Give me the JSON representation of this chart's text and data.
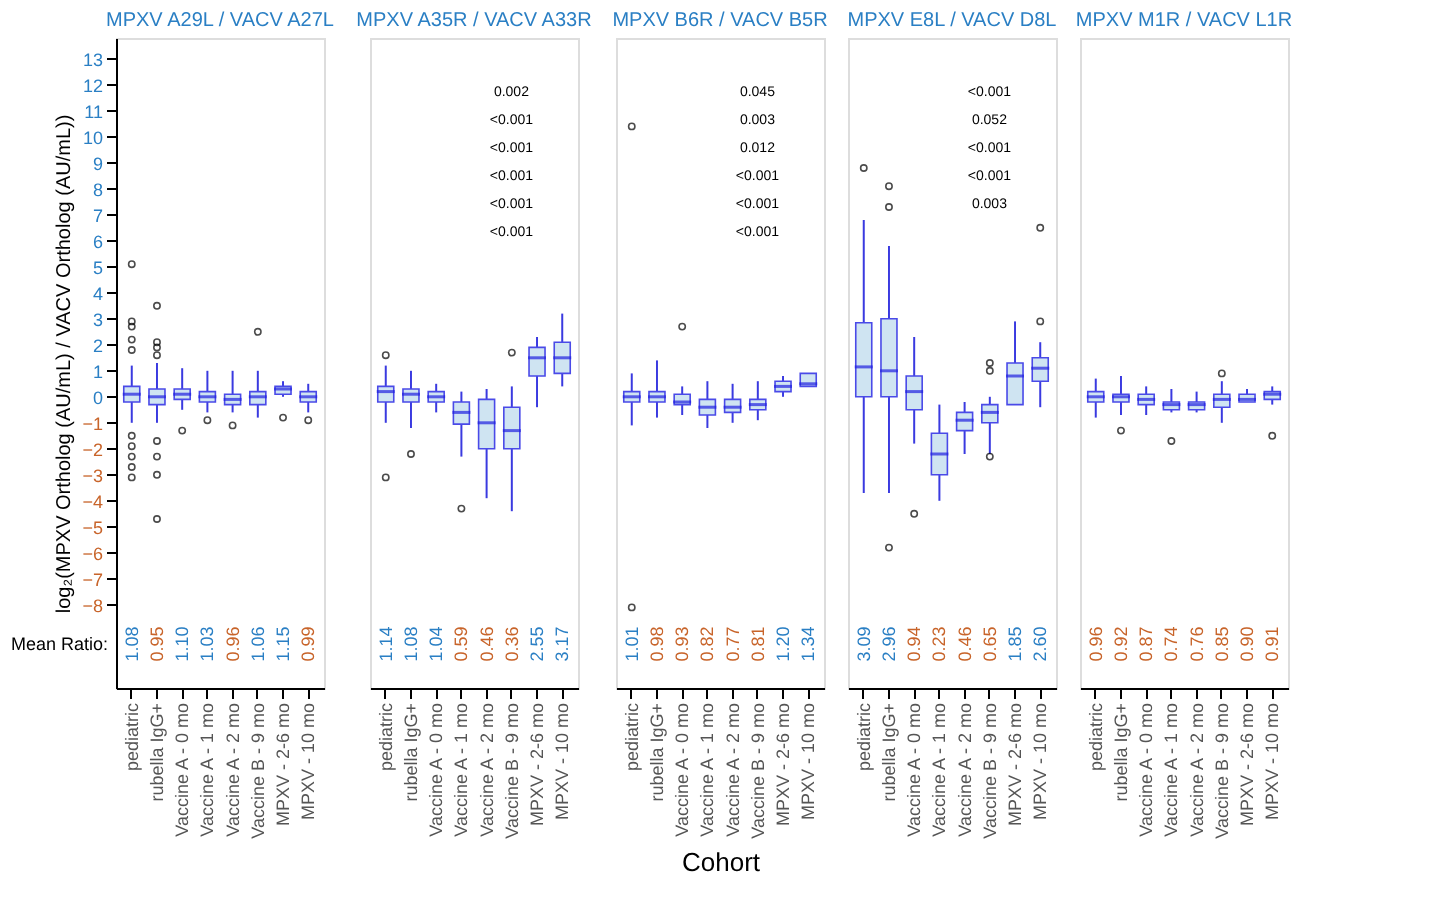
{
  "chart_data": [
    {
      "type": "box",
      "title": "MPXV A29L / VACV A27L",
      "ylabel": "log₂(MPXV Ortholog (AU/mL) / VACV Ortholog (AU/mL))",
      "categories": [
        "pediatric",
        "rubella IgG+",
        "Vaccine A - 0 mo",
        "Vaccine A - 1 mo",
        "Vaccine A - 2 mo",
        "Vaccine B - 9 mo",
        "MPXV - 2-6 mo",
        "MPXV - 10 mo"
      ],
      "boxes": [
        {
          "low": -1,
          "q1": -0.2,
          "median": 0.1,
          "q3": 0.4,
          "high": 1.2,
          "outliers": [
            5.1,
            2.9,
            2.7,
            2.2,
            1.8,
            -1.5,
            -1.9,
            -2.3,
            -2.7,
            -3.1
          ]
        },
        {
          "low": -1,
          "q1": -0.3,
          "median": 0,
          "q3": 0.3,
          "high": 1.3,
          "outliers": [
            3.5,
            2.1,
            1.9,
            1.6,
            -1.7,
            -2.3,
            -3,
            -4.7
          ]
        },
        {
          "low": -0.5,
          "q1": -0.1,
          "median": 0.1,
          "q3": 0.3,
          "high": 1.1,
          "outliers": [
            -1.3
          ]
        },
        {
          "low": -0.6,
          "q1": -0.2,
          "median": 0,
          "q3": 0.2,
          "high": 1,
          "outliers": [
            -0.9
          ]
        },
        {
          "low": -0.6,
          "q1": -0.3,
          "median": -0.1,
          "q3": 0.1,
          "high": 1,
          "outliers": [
            -1.1
          ]
        },
        {
          "low": -0.8,
          "q1": -0.3,
          "median": 0,
          "q3": 0.2,
          "high": 1,
          "outliers": [
            2.5
          ]
        },
        {
          "low": 0,
          "q1": 0.1,
          "median": 0.3,
          "q3": 0.4,
          "high": 0.6,
          "outliers": [
            -0.8
          ]
        },
        {
          "low": -0.6,
          "q1": -0.2,
          "median": 0,
          "q3": 0.2,
          "high": 0.5,
          "outliers": [
            -0.9
          ]
        }
      ],
      "ylim": [
        -11.2,
        13.8
      ],
      "yticks": [
        -8,
        -7,
        -6,
        -5,
        -4,
        -3,
        -2,
        -1,
        0,
        1,
        2,
        3,
        4,
        5,
        6,
        7,
        8,
        9,
        10,
        11,
        12,
        13
      ],
      "annotations": [
        "1.08",
        "0.95",
        "1.10",
        "1.03",
        "0.96",
        "1.06",
        "1.15",
        "0.99",
        "Mean Ratio:"
      ]
    },
    {
      "type": "box",
      "title": "MPXV A35R / VACV A33R",
      "categories": [
        "pediatric",
        "rubella IgG+",
        "Vaccine A - 0 mo",
        "Vaccine A - 1 mo",
        "Vaccine A - 2 mo",
        "Vaccine B - 9 mo",
        "MPXV - 2-6 mo",
        "MPXV - 10 mo"
      ],
      "boxes": [
        {
          "low": -1,
          "q1": -0.2,
          "median": 0.2,
          "q3": 0.4,
          "high": 1.2,
          "outliers": [
            1.6,
            -3.1
          ]
        },
        {
          "low": -1.2,
          "q1": -0.2,
          "median": 0.1,
          "q3": 0.3,
          "high": 1.0,
          "outliers": [
            -2.2
          ]
        },
        {
          "low": -0.6,
          "q1": -0.2,
          "median": 0,
          "q3": 0.2,
          "high": 0.5
        },
        {
          "low": -2.3,
          "q1": -1.05,
          "median": -0.6,
          "q3": -0.2,
          "high": 0.2,
          "outliers": [
            -4.3
          ]
        },
        {
          "low": -3.9,
          "q1": -2.0,
          "median": -1.0,
          "q3": -0.1,
          "high": 0.3
        },
        {
          "low": -4.4,
          "q1": -2.0,
          "median": -1.3,
          "q3": -0.4,
          "high": 0.4,
          "outliers": [
            1.7
          ]
        },
        {
          "low": -0.4,
          "q1": 0.8,
          "median": 1.5,
          "q3": 1.9,
          "high": 2.3
        },
        {
          "low": 0.4,
          "q1": 0.9,
          "median": 1.5,
          "q3": 2.1,
          "high": 3.2
        }
      ],
      "ylim": [
        -11.2,
        13.8
      ],
      "tick_labels": "x",
      "annotations": [
        "1.14",
        "1.08",
        "1.04",
        "0.59",
        "0.46",
        "0.36",
        "2.55",
        "3.17",
        "0.002",
        "<0.001",
        "<0.001",
        "<0.001",
        "<0.001",
        "<0.001"
      ]
    },
    {
      "type": "box",
      "title": "MPXV B6R / VACV B5R",
      "xlabel": "Cohort",
      "categories": [
        "pediatric",
        "rubella IgG+",
        "Vaccine A - 0 mo",
        "Vaccine A - 1 mo",
        "Vaccine A - 2 mo",
        "Vaccine B - 9 mo",
        "MPXV - 2-6 mo",
        "MPXV - 10 mo"
      ],
      "boxes": [
        {
          "low": -1.1,
          "q1": -0.2,
          "median": 0,
          "q3": 0.2,
          "high": 0.9,
          "outliers": [
            10.4,
            -8.1
          ]
        },
        {
          "low": -0.8,
          "q1": -0.2,
          "median": 0,
          "q3": 0.2,
          "high": 1.4
        },
        {
          "low": -0.7,
          "q1": -0.3,
          "median": -0.2,
          "q3": 0.1,
          "high": 0.4,
          "outliers": [
            2.7
          ]
        },
        {
          "low": -1.2,
          "q1": -0.7,
          "median": -0.4,
          "q3": -0.1,
          "high": 0.6
        },
        {
          "low": -1,
          "q1": -0.6,
          "median": -0.4,
          "q3": -0.1,
          "high": 0.5
        },
        {
          "low": -0.9,
          "q1": -0.5,
          "median": -0.3,
          "q3": -0.1,
          "high": 0.6
        },
        {
          "low": 0,
          "q1": 0.2,
          "median": 0.4,
          "q3": 0.6,
          "high": 0.8
        },
        {
          "low": 0.4,
          "q1": 0.4,
          "median": 0.5,
          "q3": 0.9,
          "high": 0.9
        }
      ],
      "ylim": [
        -11.2,
        13.8
      ],
      "tick_labels": "x",
      "annotations": [
        "1.01",
        "0.98",
        "0.93",
        "0.82",
        "0.77",
        "0.81",
        "1.20",
        "1.34",
        "0.045",
        "0.003",
        "0.012",
        "<0.001",
        "<0.001",
        "<0.001"
      ]
    },
    {
      "type": "box",
      "title": "MPXV E8L / VACV D8L",
      "categories": [
        "pediatric",
        "rubella IgG+",
        "Vaccine A - 0 mo",
        "Vaccine A - 1 mo",
        "Vaccine A - 2 mo",
        "Vaccine B - 9 mo",
        "MPXV - 2-6 mo",
        "MPXV - 10 mo"
      ],
      "boxes": [
        {
          "low": -3.7,
          "q1": 0,
          "median": 1.15,
          "q3": 2.85,
          "high": 6.8,
          "outliers": [
            8.8
          ]
        },
        {
          "low": -3.7,
          "q1": 0,
          "median": 1.0,
          "q3": 3.0,
          "high": 5.8,
          "outliers": [
            8.1,
            7.3,
            -5.8
          ]
        },
        {
          "low": -1.8,
          "q1": -0.5,
          "median": 0.2,
          "q3": 0.8,
          "high": 2.3,
          "outliers": [
            -4.5
          ]
        },
        {
          "low": -4,
          "q1": -3.0,
          "median": -2.2,
          "q3": -1.4,
          "high": -0.3
        },
        {
          "low": -2.2,
          "q1": -1.3,
          "median": -0.9,
          "q3": -0.6,
          "high": -0.2
        },
        {
          "low": -2.2,
          "q1": -1.0,
          "median": -0.6,
          "q3": -0.3,
          "high": 0,
          "outliers": [
            1.3,
            1.0,
            -2.3
          ]
        },
        {
          "low": -0.3,
          "q1": -0.3,
          "median": 0.8,
          "q3": 1.3,
          "high": 2.9
        },
        {
          "low": -0.4,
          "q1": 0.6,
          "median": 1.1,
          "q3": 1.5,
          "high": 2.1,
          "outliers": [
            6.5,
            2.9
          ]
        }
      ],
      "ylim": [
        -11.2,
        13.8
      ],
      "tick_labels": "x",
      "annotations": [
        "3.09",
        "2.96",
        "0.94",
        "0.23",
        "0.46",
        "0.65",
        "1.85",
        "2.60",
        "<0.001",
        "0.052",
        "<0.001",
        "<0.001",
        "0.003"
      ]
    },
    {
      "type": "box",
      "title": "MPXV M1R / VACV L1R",
      "categories": [
        "pediatric",
        "rubella IgG+",
        "Vaccine A - 0 mo",
        "Vaccine A - 1 mo",
        "Vaccine A - 2 mo",
        "Vaccine B - 9 mo",
        "MPXV - 2-6 mo",
        "MPXV - 10 mo"
      ],
      "boxes": [
        {
          "low": -0.8,
          "q1": -0.2,
          "median": 0,
          "q3": 0.2,
          "high": 0.7
        },
        {
          "low": -0.7,
          "q1": -0.2,
          "median": 0,
          "q3": 0.1,
          "high": 0.8,
          "outliers": [
            -1.3
          ]
        },
        {
          "low": -0.7,
          "q1": -0.3,
          "median": -0.1,
          "q3": 0.1,
          "high": 0.4
        },
        {
          "low": -0.6,
          "q1": -0.5,
          "median": -0.3,
          "q3": -0.2,
          "high": 0.3,
          "outliers": [
            -1.7
          ]
        },
        {
          "low": -0.6,
          "q1": -0.5,
          "median": -0.3,
          "q3": -0.2,
          "high": 0.2
        },
        {
          "low": -1,
          "q1": -0.4,
          "median": -0.1,
          "q3": 0.1,
          "high": 0.6,
          "outliers": [
            0.9
          ]
        },
        {
          "low": -0.2,
          "q1": -0.2,
          "median": -0.1,
          "q3": 0.1,
          "high": 0.3
        },
        {
          "low": -0.3,
          "q1": -0.1,
          "median": 0.1,
          "q3": 0.2,
          "high": 0.4,
          "outliers": [
            -1.5
          ]
        }
      ],
      "ylim": [
        -11.2,
        13.8
      ],
      "tick_labels": "x",
      "annotations": [
        "0.96",
        "0.92",
        "0.87",
        "0.74",
        "0.76",
        "0.85",
        "0.90",
        "0.91"
      ]
    }
  ]
}
